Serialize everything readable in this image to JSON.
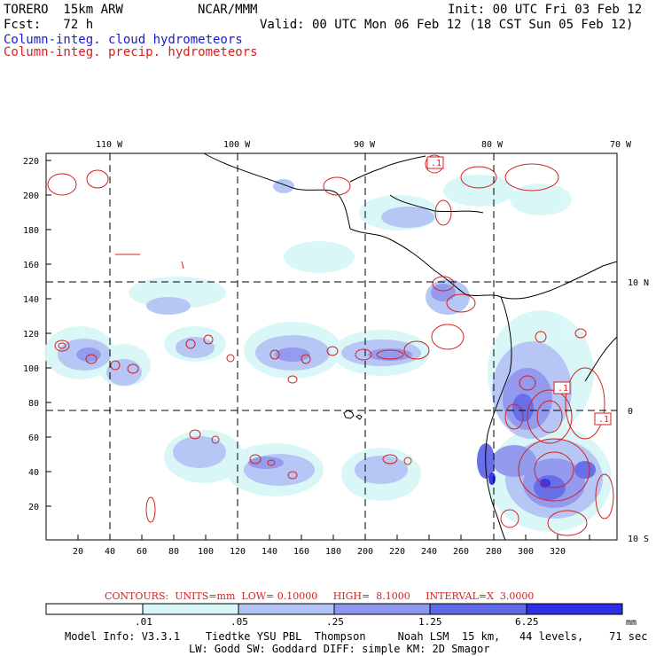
{
  "header": {
    "model": "TORERO  15km ARW",
    "org": "NCAR/MMM",
    "init": "Init: 00 UTC Fri 03 Feb 12",
    "fcst": "Fcst:   72 h",
    "valid": "Valid: 00 UTC Mon 06 Feb 12 (18 CST Sun 05 Feb 12)",
    "legend_cloud": "Column-integ. cloud hydrometeors",
    "legend_precip": "Column-integ. precip. hydrometeors"
  },
  "colors": {
    "cloud": "#1a1acc",
    "precip": "#d42020",
    "shade_1": "#d9f7f7",
    "shade_2": "#b3c3f5",
    "shade_3": "#8f96ee",
    "shade_4": "#6068e6",
    "shade_5": "#2d2ee8"
  },
  "map": {
    "lon_labels": [
      "110 W",
      "100 W",
      "90 W",
      "80 W",
      "70 W"
    ],
    "lat_labels": [
      "10 N",
      "0",
      "10 S"
    ],
    "y_ticks": [
      "220",
      "200",
      "180",
      "160",
      "140",
      "120",
      "100",
      "80",
      "60",
      "40",
      "20"
    ],
    "x_ticks": [
      "20",
      "40",
      "60",
      "80",
      "100",
      "120",
      "140",
      "160",
      "180",
      "200",
      "220",
      "240",
      "260",
      "280",
      "300",
      "320"
    ],
    "contour_labels": [
      ".1",
      ".1",
      ".1"
    ]
  },
  "contours": "CONTOURS:  UNITS=mm  LOW= 0.10000     HIGH=  8.1000     INTERVAL=X  3.0000",
  "colorbar": {
    "labels": [
      ".01",
      ".05",
      ".25",
      "1.25",
      "6.25"
    ],
    "unit": "mm"
  },
  "footer": {
    "line1": "Model Info: V3.3.1    Tiedtke YSU PBL  Thompson     Noah LSM  15 km,   44 levels,    71 sec",
    "line2": "LW: Godd SW: Goddard DIFF: simple KM: 2D Smagor"
  }
}
